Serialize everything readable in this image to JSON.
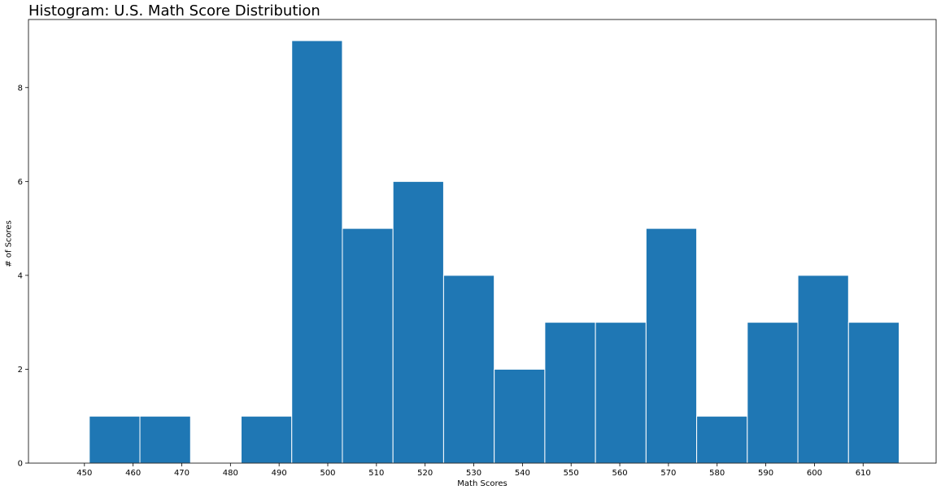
{
  "chart_data": {
    "type": "bar",
    "title": "Histogram: U.S. Math Score Distribution",
    "xlabel": "Math Scores",
    "ylabel": "# of Scores",
    "bin_edges": [
      451,
      461.4,
      471.8,
      482.2,
      492.6,
      503,
      513.4,
      523.8,
      534.2,
      544.6,
      555,
      565.4,
      575.8,
      586.2,
      596.6,
      607,
      617.4
    ],
    "values": [
      1,
      1,
      0,
      1,
      9,
      5,
      6,
      4,
      2,
      3,
      3,
      5,
      1,
      3,
      4,
      3
    ],
    "xlim": [
      438.5,
      625
    ],
    "ylim": [
      0,
      9.45
    ],
    "xticks": [
      450,
      460,
      470,
      480,
      490,
      500,
      510,
      520,
      530,
      540,
      550,
      560,
      570,
      580,
      590,
      600,
      610
    ],
    "yticks": [
      0,
      2,
      4,
      6,
      8
    ],
    "bar_color": "#1f77b4",
    "edge_color": "#ffffff",
    "grid": false,
    "legend": "none"
  }
}
